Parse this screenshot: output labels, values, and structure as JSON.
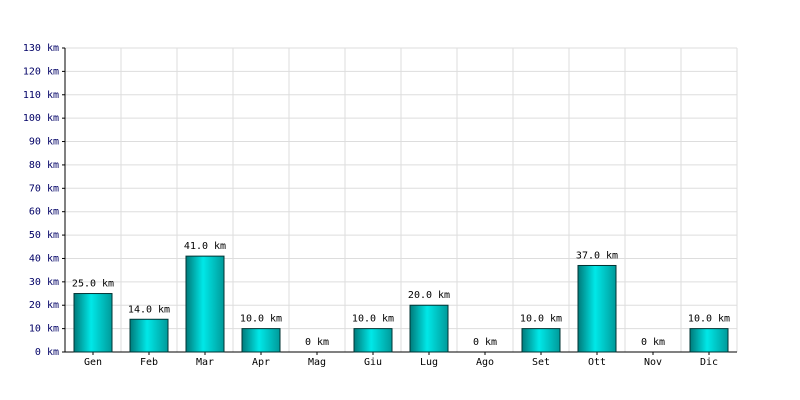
{
  "chart_data": {
    "type": "bar",
    "categories": [
      "Gen",
      "Feb",
      "Mar",
      "Apr",
      "Mag",
      "Giu",
      "Lug",
      "Ago",
      "Set",
      "Ott",
      "Nov",
      "Dic"
    ],
    "values": [
      25,
      14,
      41,
      10,
      0,
      10,
      20,
      0,
      10,
      37,
      0,
      10
    ],
    "value_labels": [
      "25.0 km",
      "14.0 km",
      "41.0 km",
      "10.0 km",
      "0 km",
      "10.0 km",
      "20.0 km",
      "0 km",
      "10.0 km",
      "37.0 km",
      "0 km",
      "10.0 km"
    ],
    "color": "#00e8e8",
    "ylim": [
      0,
      130
    ],
    "yticks": [
      {
        "value": 0,
        "label": "0 km"
      },
      {
        "value": 10,
        "label": "10 km"
      },
      {
        "value": 20,
        "label": "20 km"
      },
      {
        "value": 30,
        "label": "30 km"
      },
      {
        "value": 40,
        "label": "40 km"
      },
      {
        "value": 50,
        "label": "50 km"
      },
      {
        "value": 60,
        "label": "60 km"
      },
      {
        "value": 70,
        "label": "70 km"
      },
      {
        "value": 80,
        "label": "80 km"
      },
      {
        "value": 90,
        "label": "90 km"
      },
      {
        "value": 100,
        "label": "100 km"
      },
      {
        "value": 110,
        "label": "110 km"
      },
      {
        "value": 120,
        "label": "120 km"
      },
      {
        "value": 130,
        "label": "130 km"
      }
    ],
    "grid": true
  }
}
